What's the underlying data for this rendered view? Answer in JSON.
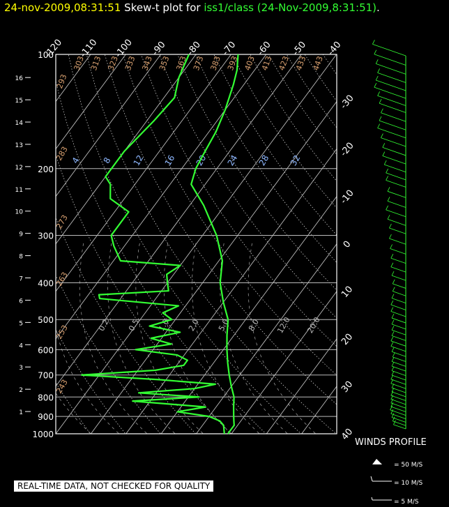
{
  "header": {
    "timestamp": "24-nov-2009,08:31:51",
    "prefix": "Skew-t plot for",
    "station": "iss1/class",
    "paren": "(24-Nov-2009,8:31:51)",
    "end": "."
  },
  "chart_data": {
    "type": "line",
    "title": "Skew-t plot for iss1/class (24-Nov-2009,8:31:51)",
    "pressure_ticks": [
      100,
      200,
      300,
      400,
      500,
      600,
      700,
      800,
      900,
      1000
    ],
    "height_ticks_km": [
      1,
      2,
      3,
      4,
      5,
      6,
      7,
      8,
      9,
      10,
      11,
      12,
      13,
      14,
      15,
      16
    ],
    "temperature_ticks_top": [
      -120,
      -110,
      -100,
      -90,
      -80,
      -70,
      -60,
      -50,
      -40
    ],
    "temperature_ticks_right": [
      -30,
      -20,
      -10,
      0,
      10,
      20,
      30,
      40
    ],
    "theta_labels": [
      293,
      303,
      313,
      323,
      333,
      343,
      353,
      363,
      373,
      383,
      393,
      403,
      413,
      423,
      433,
      443
    ],
    "dry_adiabat_labels": [
      283,
      273,
      263,
      253,
      243
    ],
    "mixing_ratio_labels_upper": [
      4,
      8,
      12,
      16,
      20,
      24,
      28,
      32
    ],
    "mixing_ratio_labels_lower": [
      "0.2",
      "0.5",
      "1.0",
      "2.0",
      "5.0",
      "8.0",
      "12.0",
      "20.0"
    ],
    "series": [
      {
        "name": "temperature",
        "color": "#33ff33",
        "points": [
          [
            1000,
            9
          ],
          [
            950,
            9
          ],
          [
            925,
            8
          ],
          [
            900,
            7
          ],
          [
            850,
            5
          ],
          [
            800,
            3
          ],
          [
            750,
            0
          ],
          [
            700,
            -3
          ],
          [
            650,
            -6
          ],
          [
            600,
            -9
          ],
          [
            550,
            -12
          ],
          [
            500,
            -15
          ],
          [
            450,
            -20
          ],
          [
            400,
            -25
          ],
          [
            350,
            -29
          ],
          [
            300,
            -36
          ],
          [
            250,
            -46
          ],
          [
            220,
            -54
          ],
          [
            200,
            -56
          ],
          [
            180,
            -57
          ],
          [
            160,
            -58
          ],
          [
            140,
            -60
          ],
          [
            120,
            -63
          ],
          [
            110,
            -65
          ],
          [
            100,
            -68
          ]
        ]
      },
      {
        "name": "dewpoint",
        "color": "#33ff33",
        "points": [
          [
            1000,
            8
          ],
          [
            950,
            6
          ],
          [
            925,
            4
          ],
          [
            900,
            0
          ],
          [
            875,
            -10
          ],
          [
            850,
            -3
          ],
          [
            820,
            -25
          ],
          [
            800,
            -7
          ],
          [
            780,
            -25
          ],
          [
            760,
            -10
          ],
          [
            740,
            -5
          ],
          [
            720,
            -22
          ],
          [
            700,
            -45
          ],
          [
            680,
            -25
          ],
          [
            660,
            -18
          ],
          [
            640,
            -18
          ],
          [
            620,
            -22
          ],
          [
            600,
            -35
          ],
          [
            580,
            -26
          ],
          [
            560,
            -33
          ],
          [
            540,
            -26
          ],
          [
            520,
            -36
          ],
          [
            500,
            -31
          ],
          [
            480,
            -35
          ],
          [
            460,
            -32
          ],
          [
            440,
            -56
          ],
          [
            430,
            -57
          ],
          [
            420,
            -38
          ],
          [
            400,
            -40
          ],
          [
            380,
            -42
          ],
          [
            360,
            -40
          ],
          [
            350,
            -58
          ],
          [
            320,
            -63
          ],
          [
            300,
            -66
          ],
          [
            260,
            -66
          ],
          [
            240,
            -74
          ],
          [
            220,
            -77
          ],
          [
            210,
            -80
          ],
          [
            200,
            -80
          ],
          [
            180,
            -80
          ],
          [
            150,
            -78
          ],
          [
            130,
            -77
          ],
          [
            115,
            -80
          ],
          [
            100,
            -82
          ]
        ]
      }
    ],
    "axis_ranges": {
      "temperature_bottom": [
        -40,
        40
      ],
      "pressure": [
        100,
        1000
      ]
    },
    "pressure_scale": "log",
    "grid": true
  },
  "winds": {
    "title": "WINDS PROFILE",
    "legend": [
      "= 50 M/S",
      "= 10 M/S",
      "= 5 M/S"
    ],
    "barbs": [
      [
        100,
        28
      ],
      [
        106,
        26
      ],
      [
        112,
        24
      ],
      [
        118,
        22
      ],
      [
        124,
        24
      ],
      [
        130,
        26
      ],
      [
        136,
        22
      ],
      [
        142,
        20
      ],
      [
        150,
        18
      ],
      [
        158,
        20
      ],
      [
        166,
        22
      ],
      [
        175,
        18
      ],
      [
        185,
        16
      ],
      [
        195,
        16
      ],
      [
        205,
        14
      ],
      [
        215,
        12
      ],
      [
        225,
        12
      ],
      [
        240,
        10
      ],
      [
        255,
        10
      ],
      [
        270,
        12
      ],
      [
        285,
        10
      ],
      [
        300,
        8
      ],
      [
        320,
        8
      ],
      [
        340,
        7
      ],
      [
        360,
        6
      ],
      [
        380,
        6
      ],
      [
        400,
        5
      ],
      [
        420,
        4
      ],
      [
        440,
        4
      ],
      [
        460,
        5
      ],
      [
        480,
        6
      ],
      [
        500,
        6
      ],
      [
        520,
        5
      ],
      [
        540,
        5
      ],
      [
        560,
        5
      ],
      [
        580,
        5
      ],
      [
        600,
        6
      ],
      [
        620,
        6
      ],
      [
        640,
        5
      ],
      [
        660,
        4
      ],
      [
        680,
        5
      ],
      [
        700,
        5
      ],
      [
        720,
        5
      ],
      [
        740,
        5
      ],
      [
        760,
        6
      ],
      [
        780,
        6
      ],
      [
        800,
        5
      ],
      [
        820,
        5
      ],
      [
        840,
        6
      ],
      [
        860,
        6
      ],
      [
        880,
        6
      ],
      [
        900,
        6
      ],
      [
        920,
        7
      ],
      [
        940,
        6
      ],
      [
        960,
        5
      ],
      [
        980,
        4
      ],
      [
        1000,
        3
      ]
    ]
  },
  "footer": {
    "disclaimer": "REAL-TIME DATA, NOT CHECKED FOR QUALITY"
  }
}
